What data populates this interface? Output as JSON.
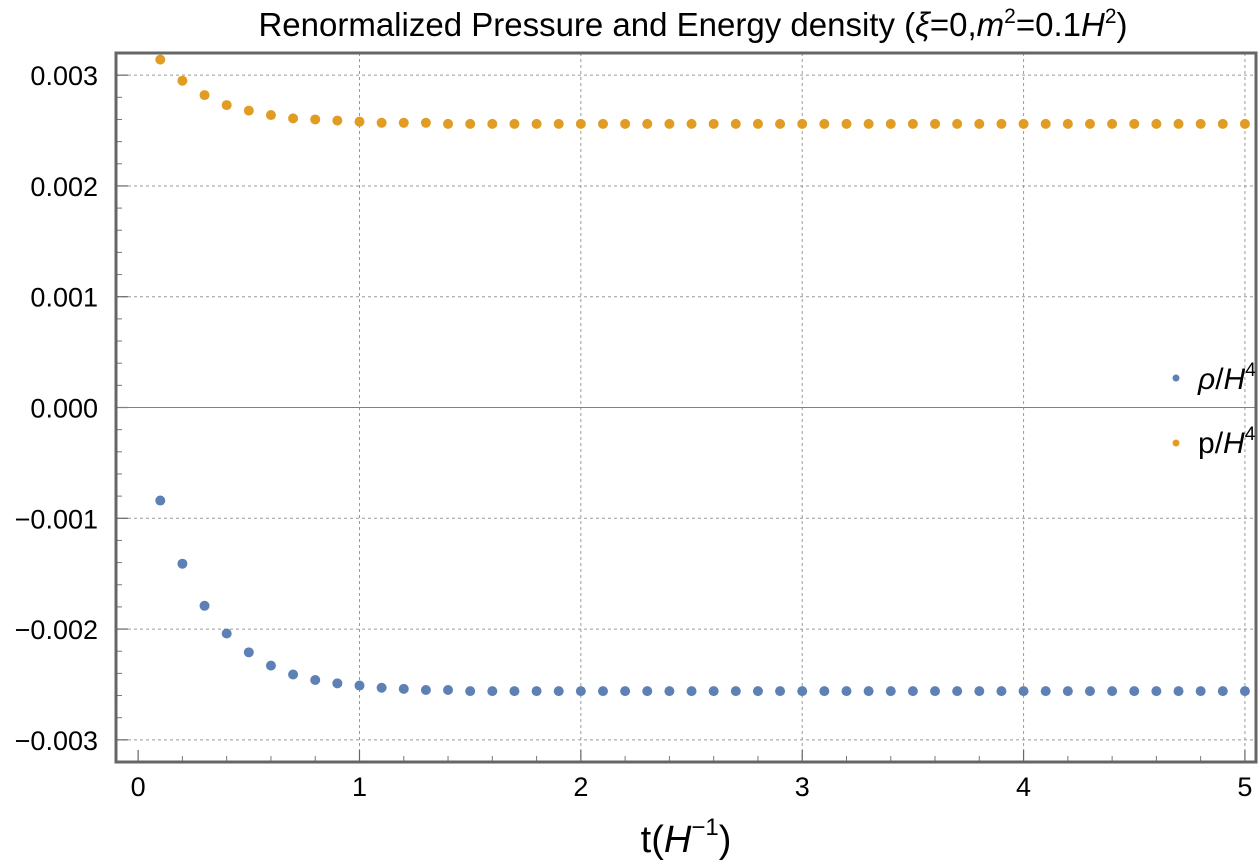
{
  "chart_data": {
    "type": "scatter",
    "title": {
      "prefix": "Renormalized Pressure and Energy density (",
      "xi": "ξ",
      "xi_value": "=0,",
      "m": "m",
      "m_exp": "2",
      "m_value": "=0.1",
      "H": "H",
      "H_exp": "2",
      "suffix": ")"
    },
    "xlabel": {
      "base": "t(",
      "H": "H",
      "exp": "−1",
      "close": ")"
    },
    "ylabel": "",
    "xlim": [
      -0.1,
      5.05
    ],
    "ylim": [
      -0.0032,
      0.0032
    ],
    "x_ticks": [
      {
        "value": 0,
        "label": "0"
      },
      {
        "value": 1,
        "label": "1"
      },
      {
        "value": 2,
        "label": "2"
      },
      {
        "value": 3,
        "label": "3"
      },
      {
        "value": 4,
        "label": "4"
      },
      {
        "value": 5,
        "label": "5"
      }
    ],
    "y_ticks": [
      {
        "value": 0.003,
        "label": "0.003"
      },
      {
        "value": 0.002,
        "label": "0.002"
      },
      {
        "value": 0.001,
        "label": "0.001"
      },
      {
        "value": 0.0,
        "label": "0.000"
      },
      {
        "value": -0.001,
        "label": "−0.001"
      },
      {
        "value": -0.002,
        "label": "−0.002"
      },
      {
        "value": -0.003,
        "label": "−0.003"
      }
    ],
    "grid": true,
    "legend_position": "right",
    "series": [
      {
        "name": "rho/H^4",
        "legend": {
          "symbol": "ρ",
          "slash": "/",
          "H": "H",
          "exp": "4"
        },
        "color": "#5e81b5",
        "x": [
          0.1,
          0.2,
          0.3,
          0.4,
          0.5,
          0.6,
          0.7,
          0.8,
          0.9,
          1.0,
          1.1,
          1.2,
          1.3,
          1.4,
          1.5,
          1.6,
          1.7,
          1.8,
          1.9,
          2.0,
          2.1,
          2.2,
          2.3,
          2.4,
          2.5,
          2.6,
          2.7,
          2.8,
          2.9,
          3.0,
          3.1,
          3.2,
          3.3,
          3.4,
          3.5,
          3.6,
          3.7,
          3.8,
          3.9,
          4.0,
          4.1,
          4.2,
          4.3,
          4.4,
          4.5,
          4.6,
          4.7,
          4.8,
          4.9,
          5.0
        ],
        "y": [
          -0.00084,
          -0.00141,
          -0.00179,
          -0.00204,
          -0.00221,
          -0.00233,
          -0.00241,
          -0.00246,
          -0.00249,
          -0.00251,
          -0.00253,
          -0.00254,
          -0.00255,
          -0.00255,
          -0.00256,
          -0.00256,
          -0.00256,
          -0.00256,
          -0.00256,
          -0.00256,
          -0.00256,
          -0.00256,
          -0.00256,
          -0.00256,
          -0.00256,
          -0.00256,
          -0.00256,
          -0.00256,
          -0.00256,
          -0.00256,
          -0.00256,
          -0.00256,
          -0.00256,
          -0.00256,
          -0.00256,
          -0.00256,
          -0.00256,
          -0.00256,
          -0.00256,
          -0.00256,
          -0.00256,
          -0.00256,
          -0.00256,
          -0.00256,
          -0.00256,
          -0.00256,
          -0.00256,
          -0.00256,
          -0.00256,
          -0.00256
        ]
      },
      {
        "name": "p/H^4",
        "legend": {
          "symbol": "p",
          "slash": "/",
          "H": "H",
          "exp": "4"
        },
        "color": "#e19c24",
        "x": [
          0.1,
          0.2,
          0.3,
          0.4,
          0.5,
          0.6,
          0.7,
          0.8,
          0.9,
          1.0,
          1.1,
          1.2,
          1.3,
          1.4,
          1.5,
          1.6,
          1.7,
          1.8,
          1.9,
          2.0,
          2.1,
          2.2,
          2.3,
          2.4,
          2.5,
          2.6,
          2.7,
          2.8,
          2.9,
          3.0,
          3.1,
          3.2,
          3.3,
          3.4,
          3.5,
          3.6,
          3.7,
          3.8,
          3.9,
          4.0,
          4.1,
          4.2,
          4.3,
          4.4,
          4.5,
          4.6,
          4.7,
          4.8,
          4.9,
          5.0
        ],
        "y": [
          0.00314,
          0.00295,
          0.00282,
          0.00273,
          0.00268,
          0.00264,
          0.00261,
          0.0026,
          0.00259,
          0.00258,
          0.00257,
          0.00257,
          0.00257,
          0.00256,
          0.00256,
          0.00256,
          0.00256,
          0.00256,
          0.00256,
          0.00256,
          0.00256,
          0.00256,
          0.00256,
          0.00256,
          0.00256,
          0.00256,
          0.00256,
          0.00256,
          0.00256,
          0.00256,
          0.00256,
          0.00256,
          0.00256,
          0.00256,
          0.00256,
          0.00256,
          0.00256,
          0.00256,
          0.00256,
          0.00256,
          0.00256,
          0.00256,
          0.00256,
          0.00256,
          0.00256,
          0.00256,
          0.00256,
          0.00256,
          0.00256,
          0.00256
        ]
      }
    ]
  }
}
